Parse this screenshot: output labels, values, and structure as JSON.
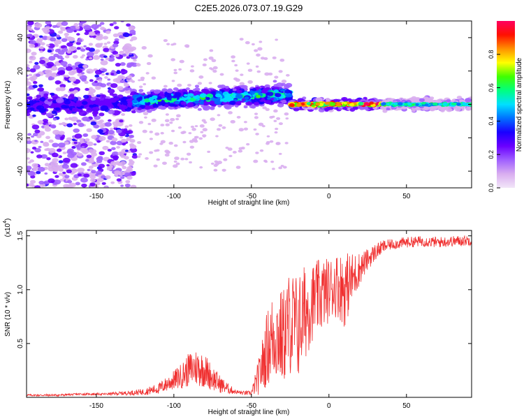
{
  "title": "C2E5.2026.073.07.19.G29",
  "chart_data": [
    {
      "type": "heatmap",
      "name": "spectrogram",
      "xlabel": "Height of straight line (km)",
      "ylabel": "Frequency (Hz)",
      "xlim": [
        -195,
        92
      ],
      "ylim": [
        -50,
        50
      ],
      "xticks": [
        -150,
        -100,
        -50,
        0,
        50
      ],
      "yticks": [
        -40,
        -20,
        0,
        20,
        40
      ],
      "colorbar": {
        "label": "Normalized spectral amplitude",
        "range": [
          0,
          1
        ],
        "ticks": [
          "0.0",
          "0.2",
          "0.4",
          "0.6",
          "0.8"
        ],
        "tick_values": [
          0,
          0.2,
          0.4,
          0.6,
          0.8
        ],
        "colors": [
          "#f2e6f8",
          "#d9aef0",
          "#a060ff",
          "#6a00ff",
          "#1a00ff",
          "#0070ff",
          "#00e0ff",
          "#00ff80",
          "#40ff00",
          "#ffff00",
          "#ff9000",
          "#ff1000",
          "#ff0060"
        ]
      },
      "regions": [
        {
          "x_range": [
            -195,
            -125
          ],
          "freq_spread": 50,
          "amplitude": 0.15,
          "note": "broadband noise"
        },
        {
          "x_range": [
            -125,
            -25
          ],
          "freq_center": 2,
          "freq_spread": 10,
          "amplitude": 0.4
        },
        {
          "x_range": [
            -25,
            35
          ],
          "freq_center": 0,
          "freq_spread": 3,
          "amplitude": 0.9
        },
        {
          "x_range": [
            35,
            92
          ],
          "freq_center": 0,
          "freq_spread": 3,
          "amplitude": 0.45
        }
      ]
    },
    {
      "type": "line",
      "name": "snr",
      "xlabel": "Height of straight line (km)",
      "ylabel": "SNR (10 * v/v)",
      "scale_label": "(x10",
      "scale_exponent": "4",
      "xlim": [
        -195,
        92
      ],
      "ylim": [
        0,
        1.55
      ],
      "xticks": [
        -150,
        -100,
        -50,
        0,
        50
      ],
      "yticks": [
        0.5,
        1.0,
        1.5
      ],
      "ytick_labels": [
        "0.5",
        "1.0",
        "1.5"
      ],
      "color": "#f03030",
      "series": [
        {
          "name": "SNR",
          "x": [
            -195,
            -175,
            -160,
            -145,
            -130,
            -120,
            -110,
            -105,
            -100,
            -95,
            -90,
            -85,
            -80,
            -75,
            -70,
            -65,
            -60,
            -55,
            -50,
            -45,
            -40,
            -35,
            -30,
            -25,
            -20,
            -15,
            -10,
            -5,
            0,
            5,
            10,
            15,
            20,
            25,
            30,
            35,
            40,
            50,
            60,
            70,
            80,
            92
          ],
          "values": [
            0.02,
            0.02,
            0.03,
            0.03,
            0.04,
            0.05,
            0.08,
            0.12,
            0.16,
            0.2,
            0.26,
            0.28,
            0.25,
            0.18,
            0.12,
            0.08,
            0.05,
            0.04,
            0.04,
            0.2,
            0.45,
            0.6,
            0.55,
            0.7,
            0.65,
            0.8,
            0.9,
            0.95,
            1.0,
            1.05,
            1.0,
            1.1,
            1.2,
            1.28,
            1.35,
            1.4,
            1.42,
            1.44,
            1.45,
            1.44,
            1.45,
            1.46
          ],
          "noise": [
            0.01,
            0.01,
            0.01,
            0.01,
            0.02,
            0.03,
            0.05,
            0.07,
            0.09,
            0.12,
            0.16,
            0.18,
            0.16,
            0.12,
            0.08,
            0.05,
            0.02,
            0.02,
            0.02,
            0.18,
            0.35,
            0.45,
            0.45,
            0.5,
            0.5,
            0.45,
            0.35,
            0.35,
            0.3,
            0.3,
            0.35,
            0.25,
            0.15,
            0.1,
            0.08,
            0.06,
            0.05,
            0.05,
            0.05,
            0.05,
            0.05,
            0.05
          ]
        }
      ]
    }
  ]
}
